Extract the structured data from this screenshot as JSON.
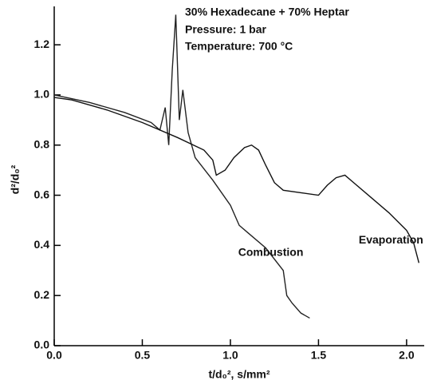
{
  "chart_data": {
    "type": "line",
    "annotations": [
      "30% Hexadecane + 70% Heptar",
      "Pressure: 1 bar",
      "Temperature: 700 °C"
    ],
    "x_label": "t/d₀², s/mm²",
    "y_label": "d²/d₀²",
    "series": [
      {
        "name": "Combustion",
        "color": "#222222",
        "x": [
          0,
          0.2,
          0.4,
          0.55,
          0.6,
          0.63,
          0.65,
          0.67,
          0.69,
          0.71,
          0.73,
          0.76,
          0.8,
          0.9,
          1.0,
          1.05,
          1.1,
          1.2,
          1.3,
          1.32,
          1.35,
          1.4,
          1.45
        ],
        "values": [
          1.0,
          0.97,
          0.93,
          0.89,
          0.86,
          0.95,
          0.8,
          1.1,
          1.32,
          0.9,
          1.02,
          0.85,
          0.75,
          0.66,
          0.56,
          0.48,
          0.45,
          0.39,
          0.3,
          0.2,
          0.17,
          0.13,
          0.11
        ]
      },
      {
        "name": "Evaporation",
        "color": "#111111",
        "x": [
          0,
          0.1,
          0.3,
          0.5,
          0.7,
          0.85,
          0.9,
          0.92,
          0.97,
          1.02,
          1.08,
          1.12,
          1.16,
          1.2,
          1.25,
          1.3,
          1.4,
          1.5,
          1.55,
          1.6,
          1.65,
          1.7,
          1.8,
          1.9,
          2.0,
          2.04,
          2.07
        ],
        "values": [
          0.99,
          0.98,
          0.94,
          0.89,
          0.83,
          0.78,
          0.74,
          0.68,
          0.7,
          0.75,
          0.79,
          0.8,
          0.78,
          0.72,
          0.65,
          0.62,
          0.61,
          0.6,
          0.64,
          0.67,
          0.68,
          0.65,
          0.59,
          0.53,
          0.46,
          0.41,
          0.33
        ]
      }
    ],
    "xlim": [
      0,
      2.1
    ],
    "xticks": [
      {
        "value": 0,
        "label": "0.0"
      },
      0.5,
      {
        "value": 1,
        "label": "1.0"
      },
      1.5,
      {
        "value": 2,
        "label": "2.0"
      }
    ],
    "ylim": [
      0,
      1.35
    ],
    "yticks": [
      {
        "value": 0,
        "label": "0.0"
      },
      0.2,
      0.4,
      0.6,
      0.8,
      {
        "value": 1,
        "label": "1.0"
      },
      1.2
    ]
  }
}
